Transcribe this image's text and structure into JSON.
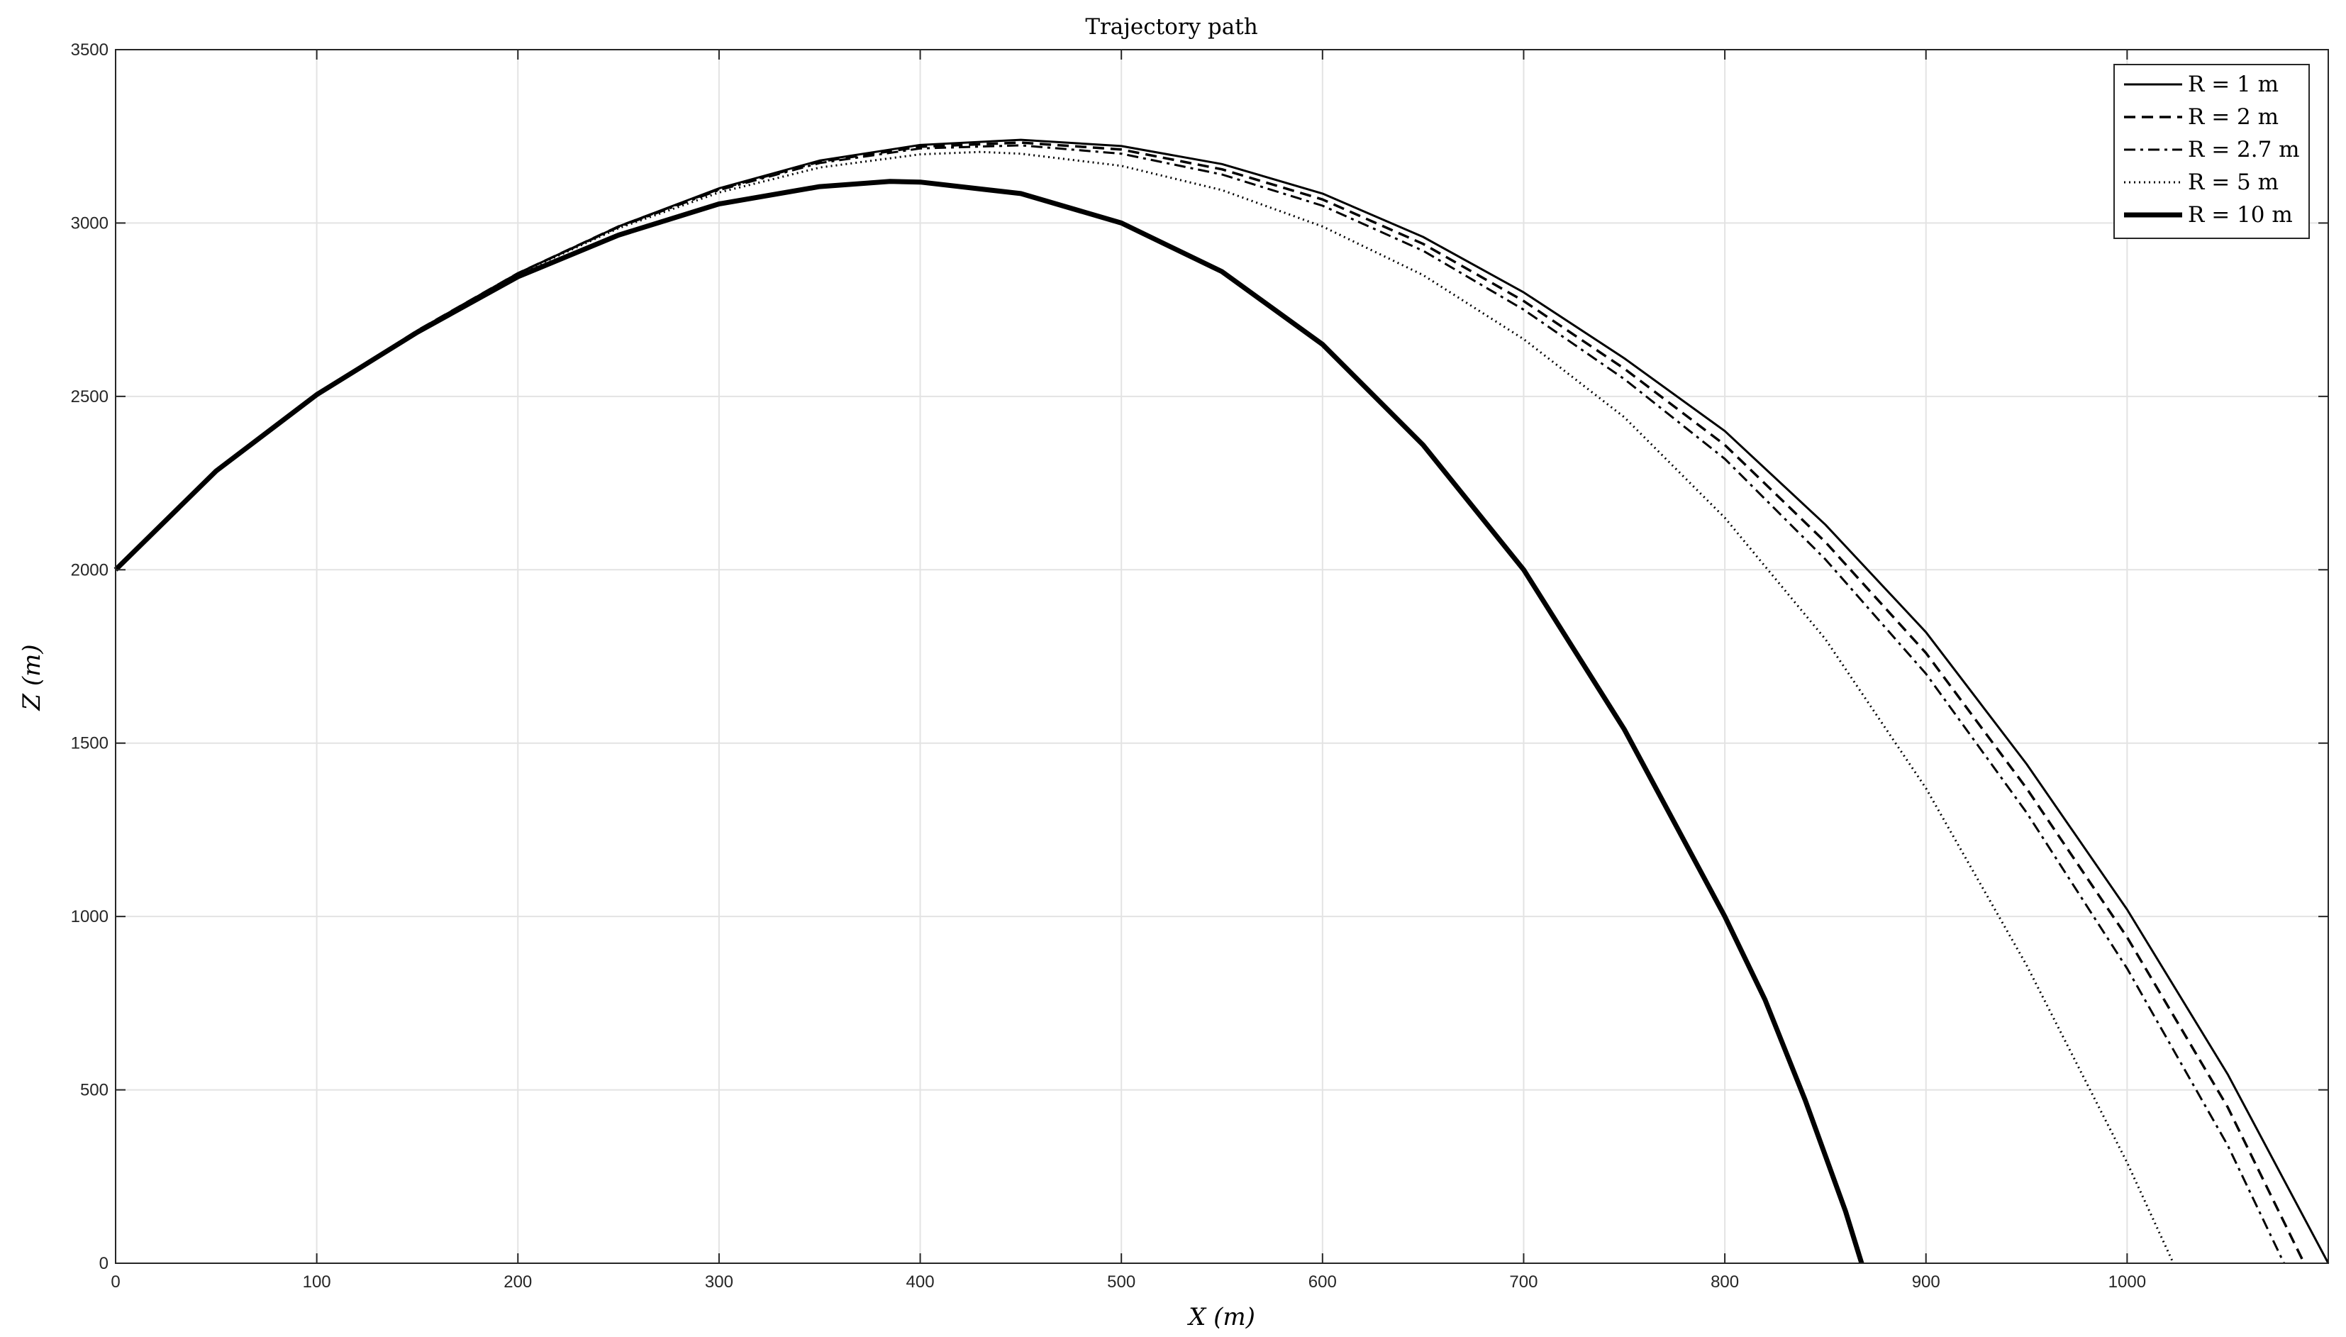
{
  "chart_data": {
    "type": "line",
    "title": "Trajectory path",
    "xlabel": "X (m)",
    "ylabel": "Z (m)",
    "xlim": [
      0,
      1100
    ],
    "ylim": [
      0,
      3500
    ],
    "xticks": [
      0,
      100,
      200,
      300,
      400,
      500,
      600,
      700,
      800,
      900,
      1000
    ],
    "yticks": [
      0,
      500,
      1000,
      1500,
      2000,
      2500,
      3000,
      3500
    ],
    "grid": true,
    "legend_position": "top-right",
    "series": [
      {
        "name": "R = 1 m",
        "style": "solid",
        "points": [
          [
            0,
            2000
          ],
          [
            50,
            2285
          ],
          [
            100,
            2505
          ],
          [
            150,
            2690
          ],
          [
            200,
            2855
          ],
          [
            250,
            2990
          ],
          [
            300,
            3100
          ],
          [
            350,
            3180
          ],
          [
            400,
            3225
          ],
          [
            450,
            3240
          ],
          [
            500,
            3222
          ],
          [
            550,
            3170
          ],
          [
            600,
            3085
          ],
          [
            650,
            2960
          ],
          [
            700,
            2800
          ],
          [
            750,
            2610
          ],
          [
            800,
            2400
          ],
          [
            850,
            2130
          ],
          [
            900,
            1820
          ],
          [
            950,
            1440
          ],
          [
            1000,
            1020
          ],
          [
            1050,
            545
          ],
          [
            1100,
            0
          ]
        ]
      },
      {
        "name": "R = 2 m",
        "style": "dashed",
        "points": [
          [
            0,
            2000
          ],
          [
            50,
            2285
          ],
          [
            100,
            2505
          ],
          [
            150,
            2690
          ],
          [
            200,
            2855
          ],
          [
            250,
            2990
          ],
          [
            300,
            3098
          ],
          [
            350,
            3177
          ],
          [
            400,
            3220
          ],
          [
            450,
            3232
          ],
          [
            500,
            3212
          ],
          [
            550,
            3155
          ],
          [
            600,
            3068
          ],
          [
            650,
            2940
          ],
          [
            700,
            2775
          ],
          [
            750,
            2580
          ],
          [
            800,
            2360
          ],
          [
            850,
            2080
          ],
          [
            900,
            1760
          ],
          [
            950,
            1370
          ],
          [
            1000,
            940
          ],
          [
            1050,
            450
          ],
          [
            1088,
            0
          ]
        ]
      },
      {
        "name": "R = 2.7 m",
        "style": "dashdot",
        "points": [
          [
            0,
            2000
          ],
          [
            50,
            2285
          ],
          [
            100,
            2505
          ],
          [
            150,
            2690
          ],
          [
            200,
            2855
          ],
          [
            250,
            2988
          ],
          [
            300,
            3095
          ],
          [
            350,
            3173
          ],
          [
            400,
            3215
          ],
          [
            450,
            3224
          ],
          [
            500,
            3200
          ],
          [
            550,
            3140
          ],
          [
            600,
            3050
          ],
          [
            650,
            2920
          ],
          [
            700,
            2750
          ],
          [
            750,
            2550
          ],
          [
            800,
            2320
          ],
          [
            850,
            2030
          ],
          [
            900,
            1700
          ],
          [
            950,
            1300
          ],
          [
            1000,
            850
          ],
          [
            1050,
            340
          ],
          [
            1078,
            0
          ]
        ]
      },
      {
        "name": "R = 5 m",
        "style": "dotted",
        "points": [
          [
            0,
            2000
          ],
          [
            50,
            2285
          ],
          [
            100,
            2505
          ],
          [
            150,
            2690
          ],
          [
            200,
            2853
          ],
          [
            250,
            2985
          ],
          [
            300,
            3088
          ],
          [
            350,
            3160
          ],
          [
            400,
            3198
          ],
          [
            430,
            3205
          ],
          [
            450,
            3200
          ],
          [
            500,
            3165
          ],
          [
            550,
            3095
          ],
          [
            600,
            2990
          ],
          [
            650,
            2850
          ],
          [
            700,
            2665
          ],
          [
            750,
            2440
          ],
          [
            800,
            2150
          ],
          [
            850,
            1800
          ],
          [
            900,
            1370
          ],
          [
            950,
            860
          ],
          [
            1000,
            290
          ],
          [
            1023,
            0
          ]
        ]
      },
      {
        "name": "R = 10 m",
        "style": "thick",
        "points": [
          [
            0,
            2000
          ],
          [
            50,
            2285
          ],
          [
            100,
            2505
          ],
          [
            150,
            2685
          ],
          [
            200,
            2845
          ],
          [
            250,
            2965
          ],
          [
            300,
            3055
          ],
          [
            350,
            3105
          ],
          [
            385,
            3120
          ],
          [
            400,
            3118
          ],
          [
            450,
            3085
          ],
          [
            500,
            3000
          ],
          [
            550,
            2860
          ],
          [
            600,
            2650
          ],
          [
            650,
            2360
          ],
          [
            700,
            2000
          ],
          [
            750,
            1540
          ],
          [
            800,
            1000
          ],
          [
            820,
            760
          ],
          [
            840,
            470
          ],
          [
            860,
            150
          ],
          [
            868,
            0
          ]
        ]
      }
    ]
  }
}
